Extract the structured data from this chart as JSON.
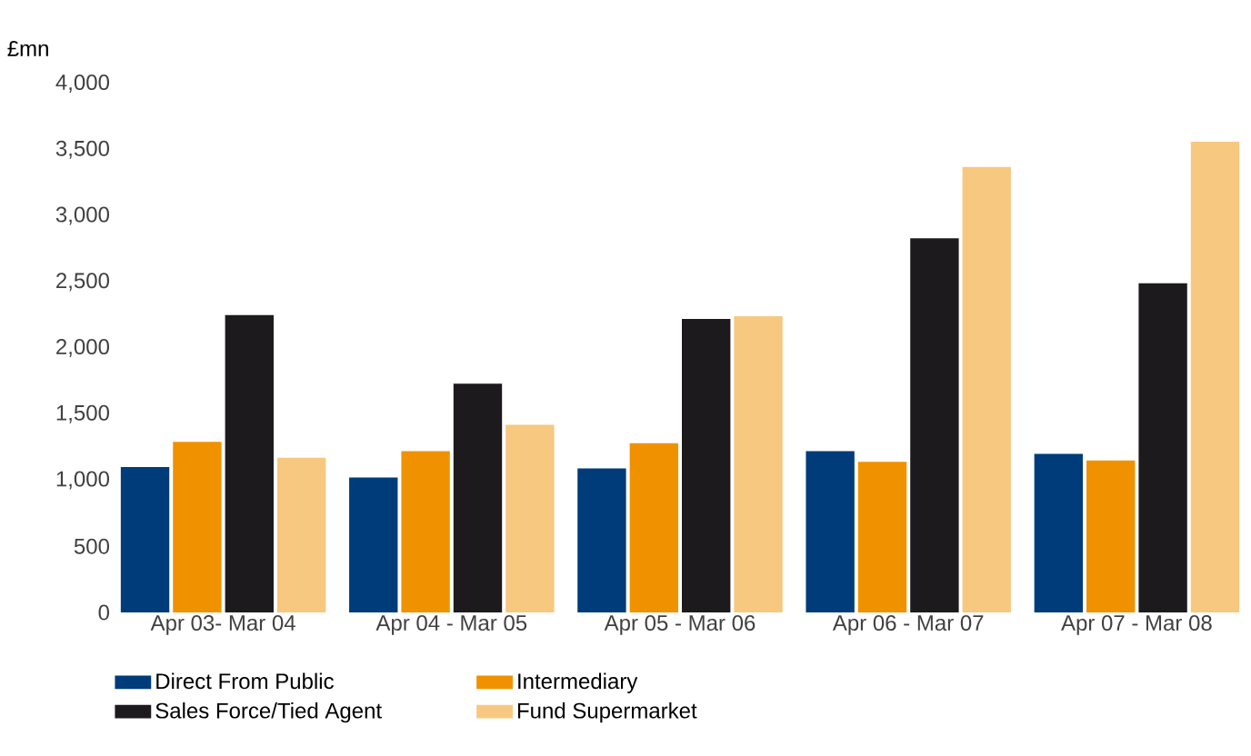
{
  "chart_data": {
    "type": "bar",
    "ylabel": "£mn",
    "categories": [
      "Apr 03- Mar 04",
      "Apr 04 - Mar 05",
      "Apr 05 - Mar 06",
      "Apr 06 - Mar 07",
      "Apr 07 - Mar 08"
    ],
    "series": [
      {
        "name": "Direct From Public",
        "color": "#003c7a",
        "values": [
          1100,
          1020,
          1090,
          1220,
          1200
        ]
      },
      {
        "name": "Intermediary",
        "color": "#f09200",
        "values": [
          1290,
          1220,
          1280,
          1140,
          1150
        ]
      },
      {
        "name": "Sales Force/Tied Agent",
        "color": "#1c1a1c",
        "values": [
          2250,
          1730,
          2220,
          2830,
          2490
        ]
      },
      {
        "name": "Fund Supermarket",
        "color": "#f7c880",
        "values": [
          1170,
          1420,
          2240,
          3370,
          3560
        ]
      }
    ],
    "ylim": [
      0,
      4000
    ],
    "yticks": [
      {
        "value": 0,
        "label": "0"
      },
      {
        "value": 500,
        "label": "500"
      },
      {
        "value": 1000,
        "label": "1,000"
      },
      {
        "value": 1500,
        "label": "1,500"
      },
      {
        "value": 2000,
        "label": "2,000"
      },
      {
        "value": 2500,
        "label": "2,500"
      },
      {
        "value": 3000,
        "label": "3,000"
      },
      {
        "value": 3500,
        "label": "3,500"
      },
      {
        "value": 4000,
        "label": "4,000"
      }
    ],
    "legend": "bottom"
  }
}
